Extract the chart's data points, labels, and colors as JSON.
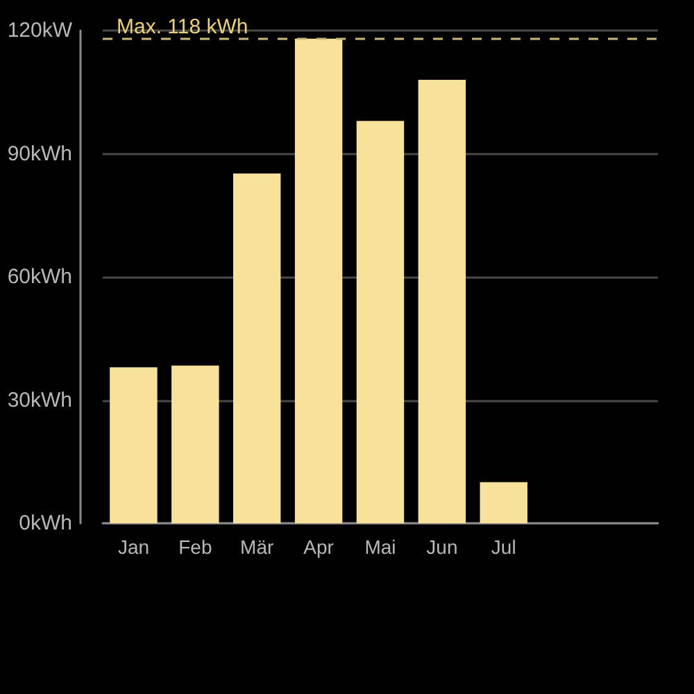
{
  "chart_data": {
    "type": "bar",
    "categories": [
      "Jan",
      "Feb",
      "Mär",
      "Apr",
      "Mai",
      "Jun",
      "Jul",
      null,
      null
    ],
    "values": [
      38,
      38.4,
      85.2,
      118,
      98,
      108,
      10,
      null,
      null
    ],
    "color": "#f6e29b",
    "ylim": [
      0,
      120
    ],
    "yticks": [
      {
        "value": 0,
        "label": "0kWh"
      },
      {
        "value": 30,
        "label": "30kWh"
      },
      {
        "value": 60,
        "label": "60kWh"
      },
      {
        "value": 90,
        "label": "90kWh"
      },
      {
        "value": 120,
        "label": "120kW"
      }
    ],
    "grid": "y",
    "ref_lines": [
      {
        "axis": "y",
        "value": 118,
        "label": "Max. 118 kWh",
        "color": "#cdb77c",
        "line_style": "dashed"
      }
    ]
  }
}
